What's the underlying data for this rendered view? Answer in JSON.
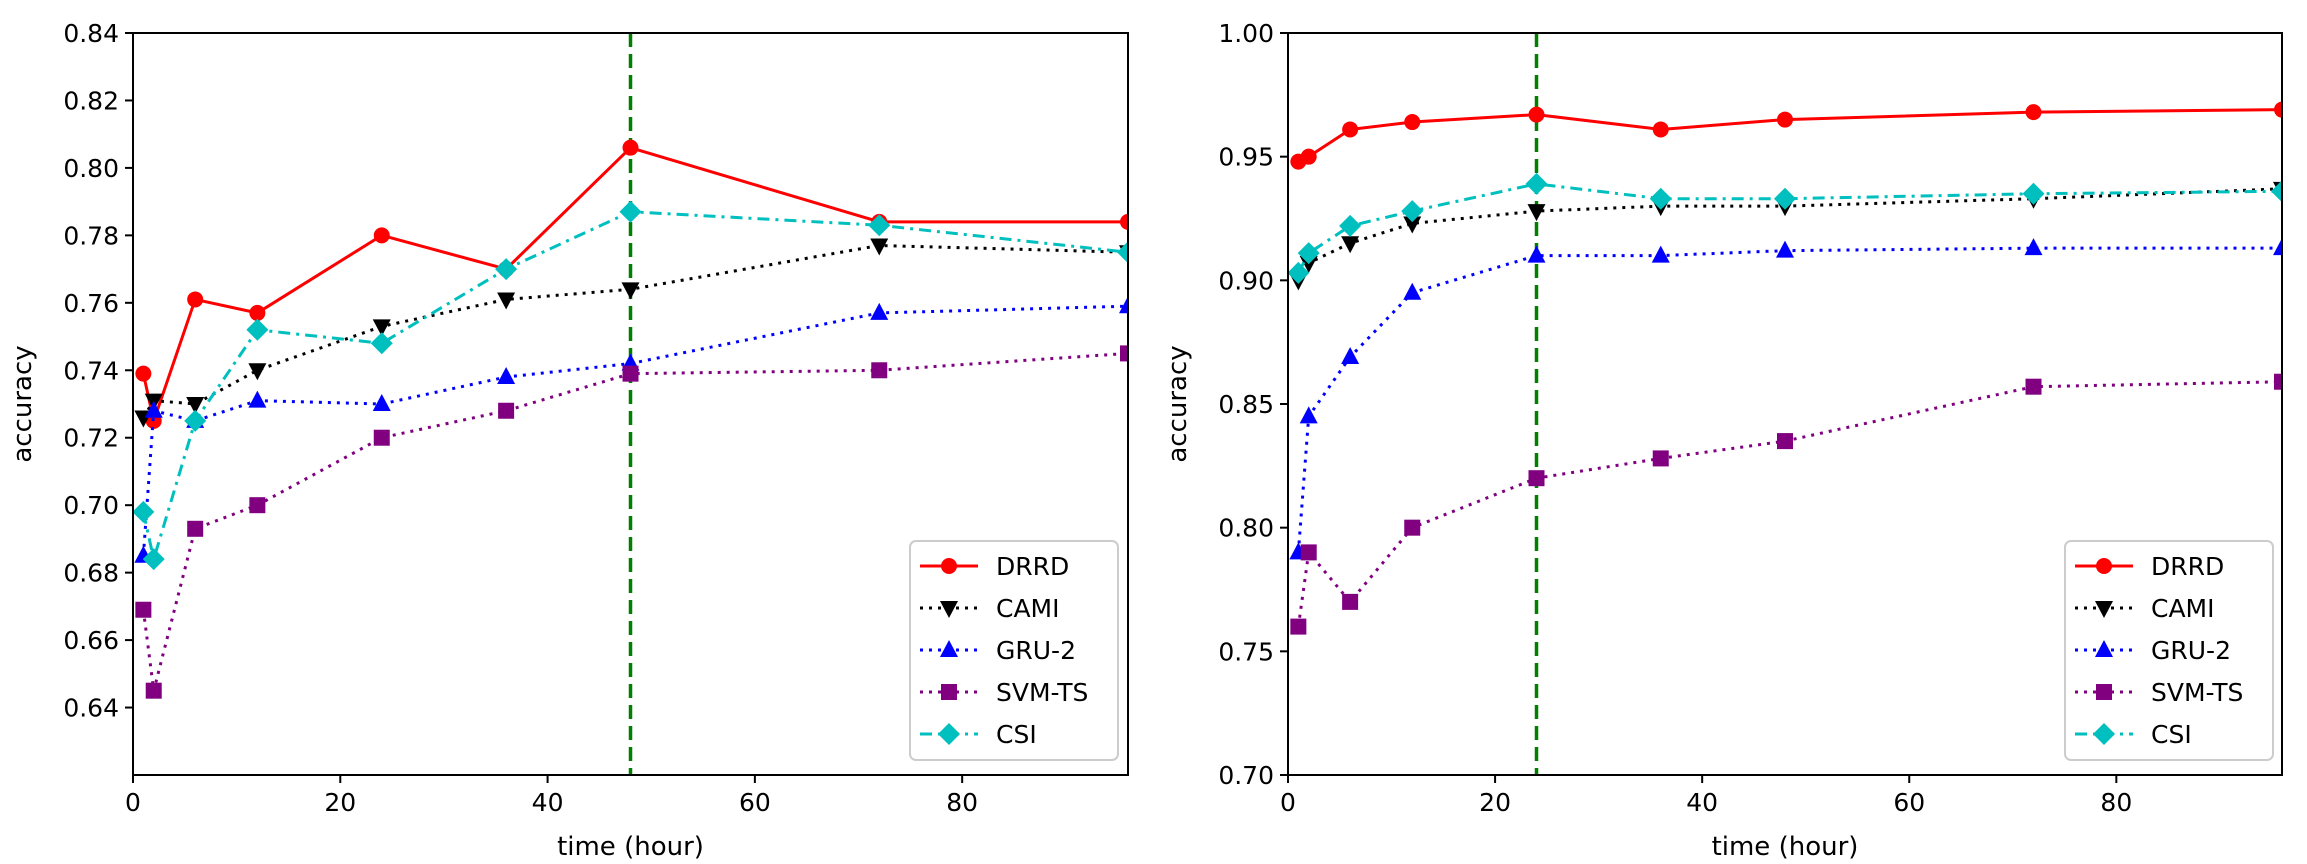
{
  "chart_data": [
    {
      "type": "line",
      "xlabel": "time (hour)",
      "ylabel": "accuracy",
      "xlim": [
        0,
        96
      ],
      "ylim": [
        0.62,
        0.84
      ],
      "xticks": [
        "0",
        "20",
        "40",
        "60",
        "80"
      ],
      "yticks": [
        "0.64",
        "0.66",
        "0.68",
        "0.70",
        "0.72",
        "0.74",
        "0.76",
        "0.78",
        "0.80",
        "0.82",
        "0.84"
      ],
      "vline_x": 48,
      "legend_position": "lower right",
      "series": [
        {
          "name": "DRRD",
          "color": "#ff0000",
          "linestyle": "solid",
          "marker": "circle",
          "x": [
            1,
            2,
            6,
            12,
            24,
            36,
            48,
            72,
            96
          ],
          "y": [
            0.739,
            0.725,
            0.761,
            0.757,
            0.78,
            0.77,
            0.806,
            0.784,
            0.784
          ]
        },
        {
          "name": "CAMI",
          "color": "#000000",
          "linestyle": "dotted",
          "marker": "triangle-down",
          "x": [
            1,
            2,
            6,
            12,
            24,
            36,
            48,
            72,
            96
          ],
          "y": [
            0.726,
            0.731,
            0.73,
            0.74,
            0.753,
            0.761,
            0.764,
            0.777,
            0.775
          ]
        },
        {
          "name": "GRU-2",
          "color": "#0000ff",
          "linestyle": "dotted",
          "marker": "triangle-up",
          "x": [
            1,
            2,
            6,
            12,
            24,
            36,
            48,
            72,
            96
          ],
          "y": [
            0.685,
            0.728,
            0.725,
            0.731,
            0.73,
            0.738,
            0.742,
            0.757,
            0.759
          ]
        },
        {
          "name": "SVM-TS",
          "color": "#800080",
          "linestyle": "dotted",
          "marker": "square",
          "x": [
            1,
            2,
            6,
            12,
            24,
            36,
            48,
            72,
            96
          ],
          "y": [
            0.669,
            0.645,
            0.693,
            0.7,
            0.72,
            0.728,
            0.739,
            0.74,
            0.745
          ]
        },
        {
          "name": "CSI",
          "color": "#00bfbf",
          "linestyle": "dashdot",
          "marker": "diamond",
          "x": [
            1,
            2,
            6,
            12,
            24,
            36,
            48,
            72,
            96
          ],
          "y": [
            0.698,
            0.684,
            0.725,
            0.752,
            0.748,
            0.77,
            0.787,
            0.783,
            0.775
          ]
        }
      ]
    },
    {
      "type": "line",
      "xlabel": "time (hour)",
      "ylabel": "accuracy",
      "xlim": [
        0,
        96
      ],
      "ylim": [
        0.7,
        1.0
      ],
      "xticks": [
        "0",
        "20",
        "40",
        "60",
        "80"
      ],
      "yticks": [
        "0.70",
        "0.75",
        "0.80",
        "0.85",
        "0.90",
        "0.95",
        "1.00"
      ],
      "vline_x": 24,
      "legend_position": "lower right",
      "series": [
        {
          "name": "DRRD",
          "color": "#ff0000",
          "linestyle": "solid",
          "marker": "circle",
          "x": [
            1,
            2,
            6,
            12,
            24,
            36,
            48,
            72,
            96
          ],
          "y": [
            0.948,
            0.95,
            0.961,
            0.964,
            0.967,
            0.961,
            0.965,
            0.968,
            0.969
          ]
        },
        {
          "name": "CAMI",
          "color": "#000000",
          "linestyle": "dotted",
          "marker": "triangle-down",
          "x": [
            1,
            2,
            6,
            12,
            24,
            36,
            48,
            72,
            96
          ],
          "y": [
            0.9,
            0.907,
            0.915,
            0.923,
            0.928,
            0.93,
            0.93,
            0.933,
            0.937
          ]
        },
        {
          "name": "GRU-2",
          "color": "#0000ff",
          "linestyle": "dotted",
          "marker": "triangle-up",
          "x": [
            1,
            2,
            6,
            12,
            24,
            36,
            48,
            72,
            96
          ],
          "y": [
            0.79,
            0.845,
            0.869,
            0.895,
            0.91,
            0.91,
            0.912,
            0.913,
            0.913
          ]
        },
        {
          "name": "SVM-TS",
          "color": "#800080",
          "linestyle": "dotted",
          "marker": "square",
          "x": [
            1,
            2,
            6,
            12,
            24,
            36,
            48,
            72,
            96
          ],
          "y": [
            0.76,
            0.79,
            0.77,
            0.8,
            0.82,
            0.828,
            0.835,
            0.857,
            0.859
          ]
        },
        {
          "name": "CSI",
          "color": "#00bfbf",
          "linestyle": "dashdot",
          "marker": "diamond",
          "x": [
            1,
            2,
            6,
            12,
            24,
            36,
            48,
            72,
            96
          ],
          "y": [
            0.903,
            0.911,
            0.922,
            0.928,
            0.939,
            0.933,
            0.933,
            0.935,
            0.936
          ]
        }
      ]
    }
  ]
}
